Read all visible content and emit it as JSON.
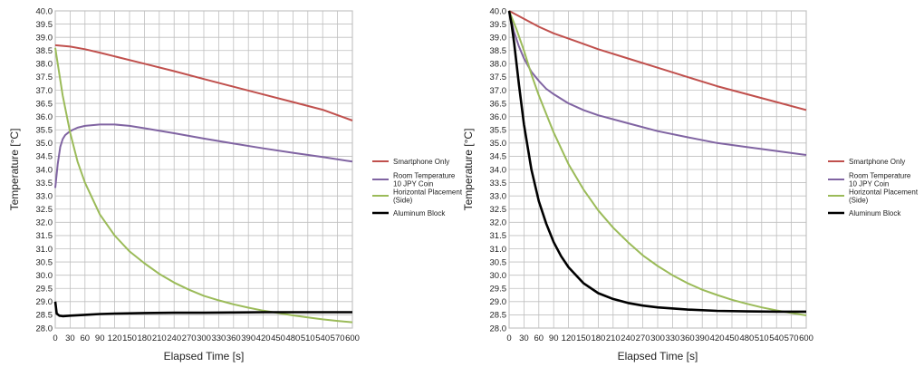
{
  "chart_data": [
    {
      "type": "line",
      "xlabel": "Elapsed Time [s]",
      "ylabel": "Temperature [°C]",
      "xlim": [
        0,
        600
      ],
      "ylim": [
        28.0,
        40.0
      ],
      "x_ticks": [
        0,
        30,
        60,
        90,
        120,
        150,
        180,
        210,
        240,
        270,
        300,
        330,
        360,
        390,
        420,
        450,
        480,
        510,
        540,
        570,
        600
      ],
      "y_ticks": [
        "28.0",
        "28.5",
        "29.0",
        "29.5",
        "30.0",
        "30.5",
        "31.0",
        "31.5",
        "32.0",
        "32.5",
        "33.0",
        "33.5",
        "34.0",
        "34.5",
        "35.0",
        "35.5",
        "36.0",
        "36.5",
        "37.0",
        "37.5",
        "38.0",
        "38.5",
        "39.0",
        "39.5",
        "40.0"
      ],
      "grid": true,
      "legend": "right",
      "series": [
        {
          "name": "Smartphone Only",
          "color": "#c0504d",
          "x": [
            0,
            30,
            60,
            90,
            120,
            180,
            240,
            300,
            360,
            420,
            480,
            540,
            600
          ],
          "y": [
            38.7,
            38.65,
            38.55,
            38.42,
            38.28,
            38.0,
            37.72,
            37.42,
            37.13,
            36.84,
            36.55,
            36.26,
            35.85
          ]
        },
        {
          "name": "Room Temperature\n10 JPY Coin",
          "color": "#8064a2",
          "x": [
            0,
            5,
            10,
            15,
            20,
            30,
            45,
            60,
            90,
            120,
            150,
            180,
            240,
            300,
            360,
            420,
            480,
            540,
            600
          ],
          "y": [
            33.3,
            34.2,
            34.85,
            35.15,
            35.3,
            35.45,
            35.58,
            35.65,
            35.7,
            35.7,
            35.65,
            35.56,
            35.37,
            35.17,
            34.98,
            34.8,
            34.63,
            34.47,
            34.3
          ]
        },
        {
          "name": "Horizontal Placement\n(Side)",
          "color": "#9bbb59",
          "x": [
            0,
            15,
            30,
            45,
            60,
            90,
            120,
            150,
            180,
            210,
            240,
            270,
            300,
            330,
            360,
            390,
            420,
            450,
            480,
            510,
            540,
            570,
            600
          ],
          "y": [
            38.6,
            36.8,
            35.4,
            34.3,
            33.5,
            32.3,
            31.5,
            30.9,
            30.45,
            30.05,
            29.72,
            29.45,
            29.22,
            29.05,
            28.9,
            28.77,
            28.66,
            28.57,
            28.48,
            28.4,
            28.33,
            28.27,
            28.22
          ]
        },
        {
          "name": "Aluminum Block",
          "color": "#000000",
          "x": [
            0,
            3,
            8,
            15,
            30,
            60,
            90,
            120,
            180,
            240,
            300,
            360,
            420,
            480,
            540,
            600
          ],
          "y": [
            29.0,
            28.55,
            28.47,
            28.45,
            28.47,
            28.5,
            28.53,
            28.55,
            28.57,
            28.58,
            28.58,
            28.59,
            28.6,
            28.6,
            28.6,
            28.6
          ]
        }
      ]
    },
    {
      "type": "line",
      "xlabel": "Elapsed Time [s]",
      "ylabel": "Temperature [°C]",
      "xlim": [
        0,
        600
      ],
      "ylim": [
        28.0,
        40.0
      ],
      "x_ticks": [
        0,
        30,
        60,
        90,
        120,
        150,
        180,
        210,
        240,
        270,
        300,
        330,
        360,
        390,
        420,
        450,
        480,
        510,
        540,
        570,
        600
      ],
      "y_ticks": [
        "28.0",
        "28.5",
        "29.0",
        "29.5",
        "30.0",
        "30.5",
        "31.0",
        "31.5",
        "32.0",
        "32.5",
        "33.0",
        "33.5",
        "34.0",
        "34.5",
        "35.0",
        "35.5",
        "36.0",
        "36.5",
        "37.0",
        "37.5",
        "38.0",
        "38.5",
        "39.0",
        "39.5",
        "40.0"
      ],
      "grid": true,
      "legend": "right",
      "series": [
        {
          "name": "Smartphone Only",
          "color": "#c0504d",
          "x": [
            0,
            30,
            60,
            90,
            120,
            180,
            240,
            300,
            360,
            420,
            480,
            540,
            600
          ],
          "y": [
            40.0,
            39.7,
            39.4,
            39.15,
            38.95,
            38.55,
            38.2,
            37.85,
            37.5,
            37.15,
            36.85,
            36.55,
            36.25
          ]
        },
        {
          "name": "Room Temperature\n10 JPY Coin",
          "color": "#8064a2",
          "x": [
            0,
            10,
            20,
            30,
            45,
            60,
            75,
            90,
            120,
            150,
            180,
            240,
            300,
            360,
            420,
            480,
            540,
            600
          ],
          "y": [
            40.0,
            39.2,
            38.65,
            38.2,
            37.7,
            37.35,
            37.05,
            36.85,
            36.5,
            36.25,
            36.05,
            35.75,
            35.45,
            35.22,
            35.0,
            34.85,
            34.7,
            34.55
          ]
        },
        {
          "name": "Horizontal Placement\n(Side)",
          "color": "#9bbb59",
          "x": [
            0,
            15,
            30,
            45,
            60,
            90,
            120,
            150,
            180,
            210,
            240,
            270,
            300,
            330,
            360,
            390,
            420,
            450,
            480,
            510,
            540,
            570,
            600
          ],
          "y": [
            40.0,
            39.3,
            38.5,
            37.6,
            36.8,
            35.4,
            34.2,
            33.25,
            32.45,
            31.8,
            31.25,
            30.75,
            30.35,
            30.0,
            29.7,
            29.45,
            29.25,
            29.07,
            28.92,
            28.78,
            28.67,
            28.57,
            28.48
          ]
        },
        {
          "name": "Aluminum Block",
          "color": "#000000",
          "x": [
            0,
            5,
            10,
            15,
            20,
            30,
            45,
            60,
            75,
            90,
            105,
            120,
            150,
            180,
            210,
            240,
            270,
            300,
            360,
            420,
            480,
            540,
            600
          ],
          "y": [
            40.0,
            39.5,
            38.8,
            38.0,
            37.2,
            35.7,
            34.0,
            32.8,
            31.95,
            31.25,
            30.72,
            30.3,
            29.7,
            29.32,
            29.1,
            28.95,
            28.85,
            28.78,
            28.7,
            28.65,
            28.63,
            28.62,
            28.62
          ]
        }
      ]
    }
  ]
}
